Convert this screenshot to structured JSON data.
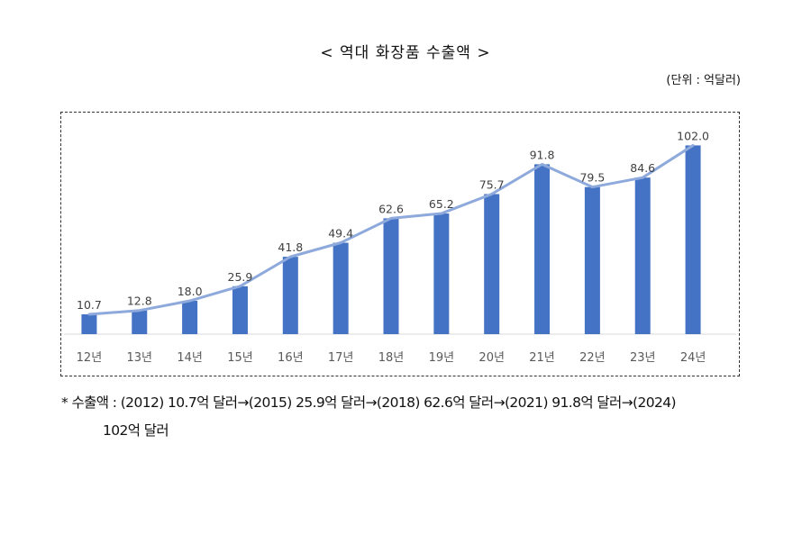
{
  "header": {
    "title": "< 역대 화장품 수출액 >",
    "unit": "(단위 : 억달러)"
  },
  "colors": {
    "bar": "#4472C4",
    "line": "#8EA9DB",
    "axis_label": "#595959",
    "data_label": "#404040"
  },
  "chart_data": {
    "type": "bar",
    "categories": [
      "12년",
      "13년",
      "14년",
      "15년",
      "16년",
      "17년",
      "18년",
      "19년",
      "20년",
      "21년",
      "22년",
      "23년",
      "24년"
    ],
    "series": [
      {
        "values": [
          10.7,
          12.8,
          18.0,
          25.9,
          41.8,
          49.4,
          62.6,
          65.2,
          75.7,
          91.8,
          79.5,
          84.6,
          102.0
        ]
      }
    ],
    "data_labels": [
      "10.7",
      "12.8",
      "18.0",
      "25.9",
      "41.8",
      "49.4",
      "62.6",
      "65.2",
      "75.7",
      "91.8",
      "79.5",
      "84.6",
      "102.0"
    ],
    "overlay_line": true,
    "ylim": [
      0,
      110
    ],
    "grid": false,
    "title": "",
    "xlabel": "",
    "ylabel": ""
  },
  "footnote": {
    "line1": "*  수출액 : (2012) 10.7억 달러→(2015) 25.9억 달러→(2018) 62.6억 달러→(2021) 91.8억 달러→(2024)",
    "line2": "102억 달러"
  }
}
